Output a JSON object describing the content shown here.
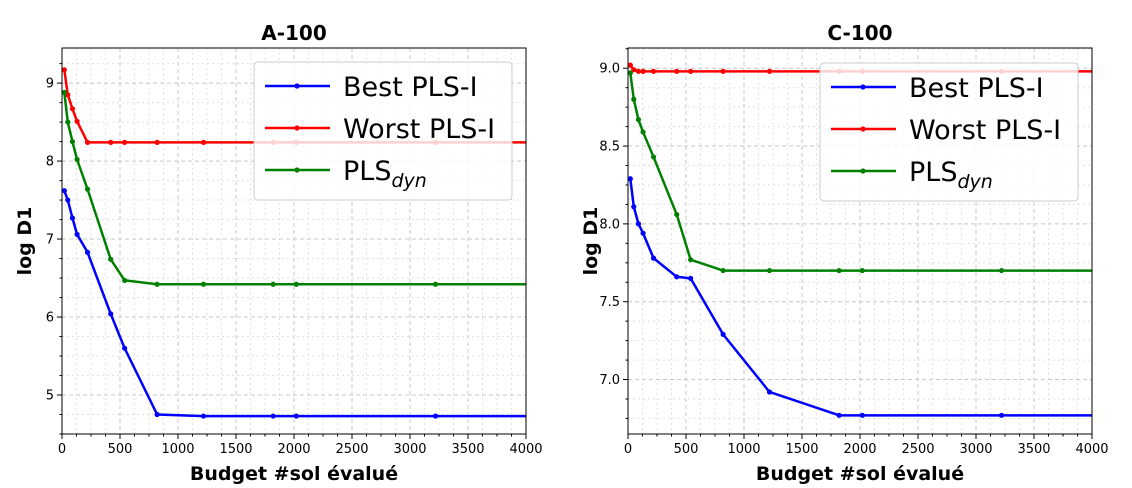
{
  "chart_data": [
    {
      "type": "line",
      "title": "A-100",
      "xlabel": "Budget #sol évalué",
      "ylabel": "log D1",
      "xlim": [
        0,
        4000
      ],
      "ylim": [
        4.5,
        9.45
      ],
      "xticks": [
        0,
        500,
        1000,
        1500,
        2000,
        2500,
        3000,
        3500,
        4000
      ],
      "yticks": [
        5,
        6,
        7,
        8,
        9
      ],
      "ytick_labels": [
        "5",
        "6",
        "7",
        "8",
        "9"
      ],
      "grid": true,
      "legend_position": "upper right",
      "series": [
        {
          "name": "Best PLS-I",
          "color": "#0000ff",
          "x": [
            20,
            50,
            90,
            130,
            220,
            420,
            540,
            820,
            1220,
            1820,
            2020,
            3220,
            4000
          ],
          "y": [
            7.62,
            7.5,
            7.27,
            7.06,
            6.83,
            6.04,
            5.6,
            4.75,
            4.73,
            4.73,
            4.73,
            4.73,
            4.73
          ]
        },
        {
          "name": "Worst PLS-I",
          "color": "#ff0000",
          "x": [
            20,
            50,
            90,
            130,
            220,
            420,
            540,
            820,
            1220,
            1820,
            2020,
            3220,
            4000
          ],
          "y": [
            9.17,
            8.85,
            8.67,
            8.51,
            8.24,
            8.24,
            8.24,
            8.24,
            8.24,
            8.24,
            8.24,
            8.24,
            8.24
          ]
        },
        {
          "name": "PLS",
          "name_subscript": "dyn",
          "color": "#008000",
          "x": [
            20,
            50,
            90,
            130,
            220,
            420,
            540,
            820,
            1220,
            1820,
            2020,
            3220,
            4000
          ],
          "y": [
            8.88,
            8.5,
            8.25,
            8.02,
            7.64,
            6.74,
            6.47,
            6.42,
            6.42,
            6.42,
            6.42,
            6.42,
            6.42
          ]
        }
      ]
    },
    {
      "type": "line",
      "title": "C-100",
      "xlabel": "Budget #sol évalué",
      "ylabel": "log D1",
      "xlim": [
        0,
        4000
      ],
      "ylim": [
        6.65,
        9.13
      ],
      "xticks": [
        0,
        500,
        1000,
        1500,
        2000,
        2500,
        3000,
        3500,
        4000
      ],
      "yticks": [
        7.0,
        7.5,
        8.0,
        8.5,
        9.0
      ],
      "ytick_labels": [
        "7.0",
        "7.5",
        "8.0",
        "8.5",
        "9.0"
      ],
      "grid": true,
      "legend_position": "upper right",
      "series": [
        {
          "name": "Best PLS-I",
          "color": "#0000ff",
          "x": [
            20,
            50,
            90,
            130,
            220,
            420,
            540,
            820,
            1220,
            1820,
            2020,
            3220,
            4000
          ],
          "y": [
            8.29,
            8.11,
            8.0,
            7.94,
            7.78,
            7.66,
            7.65,
            7.29,
            6.92,
            6.77,
            6.77,
            6.77,
            6.77
          ]
        },
        {
          "name": "Worst PLS-I",
          "color": "#ff0000",
          "x": [
            20,
            50,
            90,
            130,
            220,
            420,
            540,
            820,
            1220,
            1820,
            2020,
            3220,
            4000
          ],
          "y": [
            9.02,
            8.99,
            8.98,
            8.98,
            8.98,
            8.98,
            8.98,
            8.98,
            8.98,
            8.98,
            8.98,
            8.98,
            8.98
          ]
        },
        {
          "name": "PLS",
          "name_subscript": "dyn",
          "color": "#008000",
          "x": [
            20,
            50,
            90,
            130,
            220,
            420,
            540,
            820,
            1220,
            1820,
            2020,
            3220,
            4000
          ],
          "y": [
            8.97,
            8.8,
            8.67,
            8.59,
            8.43,
            8.06,
            7.77,
            7.7,
            7.7,
            7.7,
            7.7,
            7.7,
            7.7
          ]
        }
      ]
    }
  ]
}
